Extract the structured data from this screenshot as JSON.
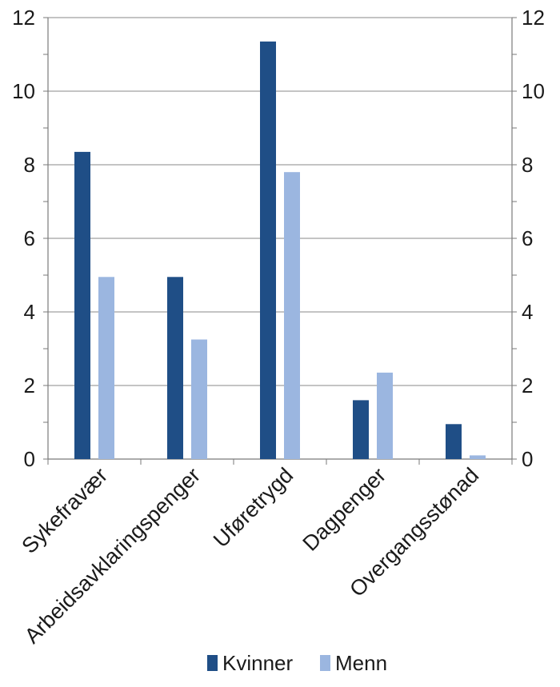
{
  "chart_data": {
    "type": "bar",
    "categories": [
      "Sykefravær",
      "Arbeidsavklaringspenger",
      "Uføretrygd",
      "Dagpenger",
      "Overgangsstønad"
    ],
    "series": [
      {
        "name": "Kvinner",
        "values": [
          8.35,
          4.95,
          11.35,
          1.6,
          0.95
        ],
        "color": "#1f4e86"
      },
      {
        "name": "Menn",
        "values": [
          4.95,
          3.25,
          7.8,
          2.35,
          0.1
        ],
        "color": "#9bb6e0"
      }
    ],
    "ylim": [
      0,
      12
    ],
    "y_ticks": [
      0,
      2,
      4,
      6,
      8,
      10,
      12
    ],
    "y_tick_labels": [
      "0",
      "2",
      "4",
      "6",
      "8",
      "10",
      "12"
    ],
    "y_minor_step": 1,
    "secondary_y_axis": true,
    "grid": true,
    "legend_position": "bottom",
    "title": "",
    "xlabel": "",
    "ylabel": ""
  }
}
